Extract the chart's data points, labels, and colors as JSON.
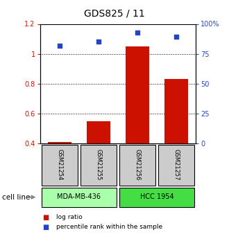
{
  "title": "GDS825 / 11",
  "samples": [
    "GSM21254",
    "GSM21255",
    "GSM21256",
    "GSM21257"
  ],
  "log_ratios": [
    0.41,
    0.55,
    1.05,
    0.83
  ],
  "percentile_ranks": [
    82,
    85,
    93,
    89
  ],
  "cell_lines": [
    {
      "label": "MDA-MB-436",
      "samples": [
        0,
        1
      ],
      "color": "#aaffaa"
    },
    {
      "label": "HCC 1954",
      "samples": [
        2,
        3
      ],
      "color": "#44dd44"
    }
  ],
  "ylim_left": [
    0.4,
    1.2
  ],
  "ylim_right": [
    0,
    100
  ],
  "yticks_left": [
    0.4,
    0.6,
    0.8,
    1.0,
    1.2
  ],
  "ytick_labels_left": [
    "0.4",
    "0.6",
    "0.8",
    "1",
    "1.2"
  ],
  "yticks_right": [
    0,
    25,
    50,
    75,
    100
  ],
  "ytick_labels_right": [
    "0",
    "25",
    "50",
    "75",
    "100%"
  ],
  "grid_values": [
    0.6,
    0.8,
    1.0
  ],
  "bar_color": "#cc1100",
  "scatter_color": "#2244cc",
  "bar_bottom": 0.4,
  "bar_width": 0.6,
  "cell_line_label": "cell line",
  "legend_items": [
    "log ratio",
    "percentile rank within the sample"
  ],
  "legend_colors": [
    "#cc1100",
    "#2244cc"
  ],
  "background_color": "#ffffff",
  "tick_label_color_left": "#cc1100",
  "tick_label_color_right": "#2244cc",
  "sample_box_color": "#cccccc",
  "figwidth": 3.3,
  "figheight": 3.45,
  "dpi": 100
}
